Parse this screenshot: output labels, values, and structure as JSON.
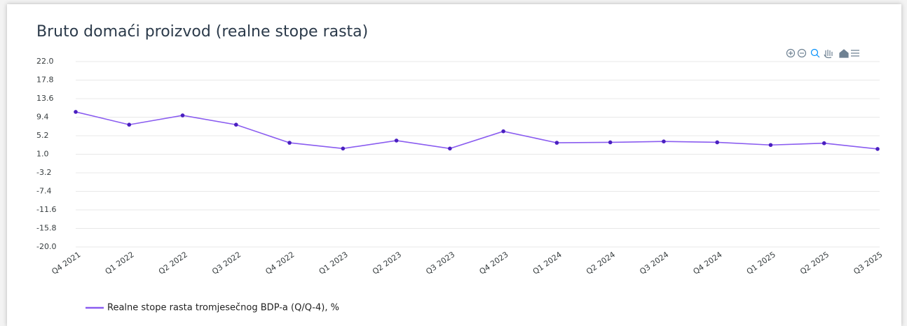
{
  "chart_data": {
    "type": "line",
    "title": "Bruto domaći proizvod (realne stope rasta)",
    "categories": [
      "Q4 2021",
      "Q1 2022",
      "Q2 2022",
      "Q3 2022",
      "Q4 2022",
      "Q1 2023",
      "Q2 2023",
      "Q3 2023",
      "Q4 2023",
      "Q1 2024",
      "Q2 2024",
      "Q3 2024",
      "Q4 2024",
      "Q1 2025",
      "Q2 2025",
      "Q3 2025"
    ],
    "series": [
      {
        "name": "Realne stope rasta tromjesečnog BDP-a (Q/Q-4), %",
        "color": "#8a5cf0",
        "marker_color": "#4a1fc0",
        "values": [
          10.6,
          7.7,
          9.8,
          7.7,
          3.6,
          2.3,
          4.1,
          2.3,
          6.2,
          3.6,
          3.7,
          3.9,
          3.7,
          3.1,
          3.5,
          2.2
        ]
      }
    ],
    "ylim": [
      -20.0,
      22.0
    ],
    "yticks": [
      {
        "value": 22.0,
        "label": "22.0"
      },
      17.8,
      13.6,
      9.4,
      5.2,
      {
        "value": 1.0,
        "label": "1.0"
      },
      -3.2,
      -7.4,
      -11.6,
      -15.8,
      {
        "value": -20.0,
        "label": "-20.0"
      }
    ],
    "grid": true
  }
}
